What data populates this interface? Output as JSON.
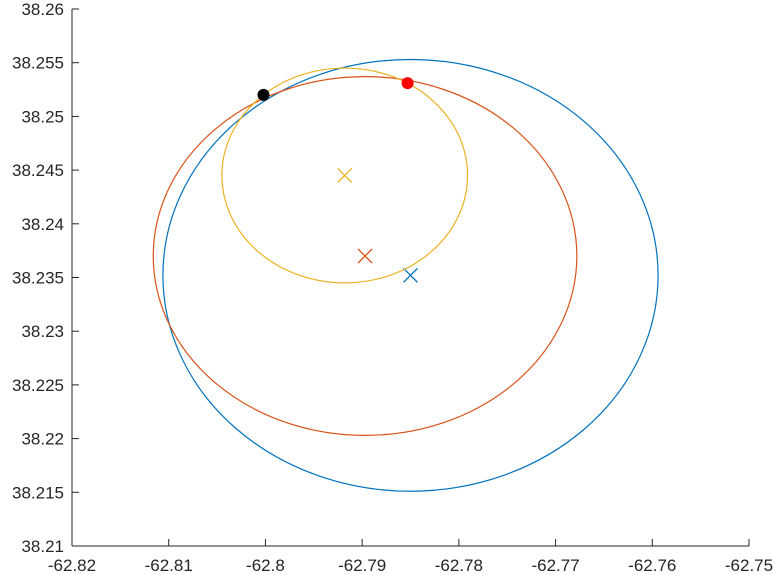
{
  "chart_data": {
    "type": "scatter",
    "title": "",
    "xlabel": "",
    "ylabel": "",
    "xlim": [
      -62.82,
      -62.75
    ],
    "ylim": [
      38.21,
      38.26
    ],
    "grid": false,
    "x_ticks": [
      "-62.82",
      "-62.81",
      "-62.8",
      "-62.79",
      "-62.78",
      "-62.77",
      "-62.76",
      "-62.75"
    ],
    "y_ticks": [
      "38.26",
      "38.255",
      "38.25",
      "38.245",
      "38.24",
      "38.235",
      "38.23",
      "38.225",
      "38.22",
      "38.215",
      "38.21"
    ],
    "series": [
      {
        "color": "#0072BD",
        "center": [
          -62.785,
          38.2352
        ],
        "radius_x": 0.0256,
        "radius_y": 0.0201
      },
      {
        "color": "#D95319",
        "center": [
          -62.7897,
          38.237
        ],
        "radius_x": 0.0219,
        "radius_y": 0.0167
      },
      {
        "color": "#EDB120",
        "center": [
          -62.7918,
          38.2445
        ],
        "radius_x": 0.0127,
        "radius_y": 0.01
      }
    ],
    "points": [
      {
        "x": -62.8002,
        "y": 38.252,
        "color": "#000000"
      },
      {
        "x": -62.7853,
        "y": 38.2531,
        "color": "#FF0000"
      }
    ]
  }
}
